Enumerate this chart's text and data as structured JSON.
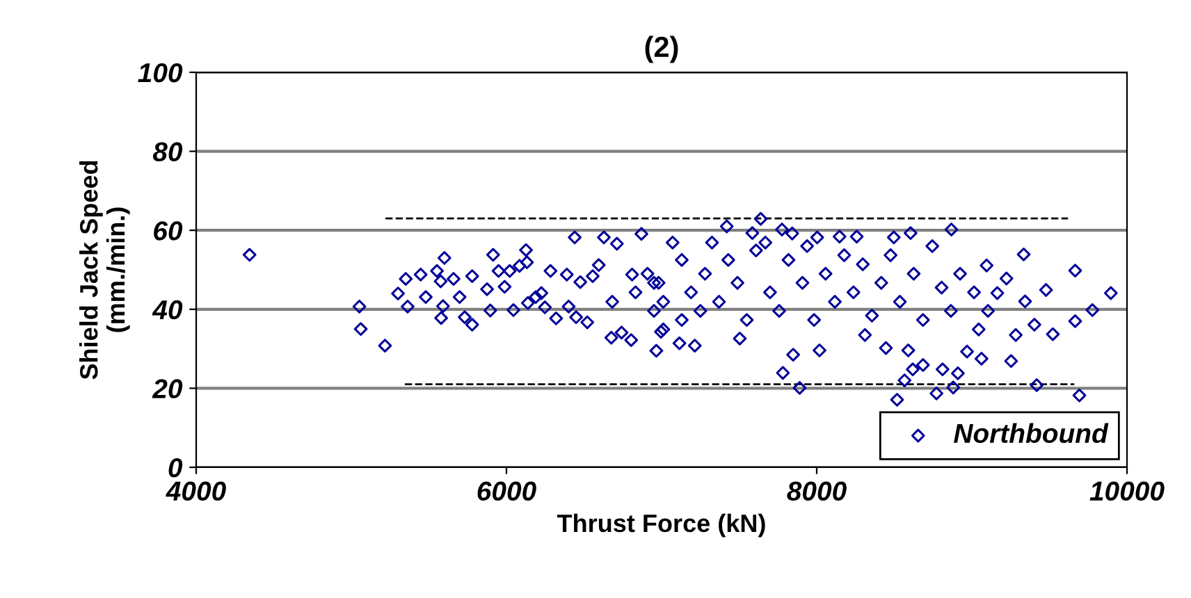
{
  "chart_data": {
    "type": "scatter",
    "title": "(2)",
    "xlabel": "Thrust Force (kN)",
    "ylabel": "Shield Jack Speed\n(mm./min.)",
    "xlim": [
      4000,
      10000
    ],
    "xticks": [
      4000,
      6000,
      8000,
      10000
    ],
    "ylim": [
      0,
      100
    ],
    "yticks": [
      0,
      20,
      40,
      60,
      80,
      100
    ],
    "grid": "y",
    "legend": "bottom right",
    "marker": "diamond",
    "series": [
      {
        "name": "Northbound",
        "color": "#000099",
        "x": [
          4344,
          5052,
          5061,
          5217,
          5301,
          5351,
          5363,
          5447,
          5480,
          5552,
          5600,
          5576,
          5579,
          5591,
          5659,
          5698,
          5731,
          5779,
          5779,
          5875,
          5896,
          5914,
          5949,
          5988,
          6021,
          6045,
          6084,
          6126,
          6132,
          6138,
          6189,
          6225,
          6248,
          6284,
          6320,
          6389,
          6401,
          6440,
          6449,
          6476,
          6521,
          6556,
          6595,
          6628,
          6676,
          6712,
          6742,
          6804,
          6810,
          6870,
          6909,
          6966,
          6996,
          6682,
          6832,
          6951,
          6981,
          7071,
          6951,
          7011,
          7115,
          7214,
          7250,
          7325,
          7420,
          7504,
          7585,
          7639,
          7669,
          7776,
          7842,
          7782,
          7848,
          7890,
          8018,
          8003,
          8147,
          8258,
          8311,
          8446,
          8497,
          8605,
          8590,
          8566,
          8619,
          8685,
          8772,
          8811,
          8868,
          8880,
          8910,
          8969,
          9062,
          9095,
          9164,
          9223,
          9334,
          9343,
          9283,
          9253,
          9403,
          9418,
          9478,
          9522,
          9666,
          9666,
          9693,
          9777,
          9896,
          8518,
          7130,
          7190,
          7280,
          7370,
          7430,
          7489,
          7549,
          7609,
          7699,
          7758,
          7818,
          7908,
          7938,
          7983,
          8057,
          8117,
          8177,
          8237,
          8297,
          8356,
          8416,
          8476,
          8536,
          8625,
          8685,
          8745,
          8805,
          8865,
          8924,
          9014,
          9044,
          9104,
          7011,
          7130
        ],
        "values": [
          53.8,
          40.7,
          35.0,
          30.8,
          44.0,
          47.7,
          40.7,
          48.8,
          43.1,
          49.7,
          53.0,
          47.1,
          37.8,
          40.8,
          47.7,
          43.1,
          38.0,
          36.1,
          48.4,
          45.1,
          39.7,
          53.8,
          49.7,
          45.7,
          49.7,
          39.8,
          51.0,
          55.0,
          51.9,
          41.6,
          43.1,
          44.1,
          40.5,
          49.7,
          37.7,
          48.8,
          40.7,
          58.2,
          38.0,
          46.9,
          36.7,
          48.4,
          51.2,
          58.2,
          32.8,
          56.6,
          34.1,
          32.2,
          48.8,
          59.1,
          49.0,
          29.5,
          34.3,
          41.9,
          44.3,
          39.6,
          46.7,
          56.9,
          46.7,
          34.9,
          31.4,
          30.8,
          39.6,
          56.9,
          61.0,
          32.6,
          59.3,
          62.9,
          56.9,
          60.2,
          59.2,
          23.9,
          28.5,
          20.1,
          29.6,
          58.2,
          58.4,
          58.4,
          33.5,
          30.2,
          58.2,
          59.3,
          29.6,
          22.0,
          24.8,
          25.9,
          18.7,
          24.8,
          60.2,
          20.2,
          23.8,
          29.3,
          27.5,
          51.1,
          44.1,
          47.8,
          53.9,
          42.0,
          33.5,
          26.9,
          36.1,
          20.8,
          44.9,
          33.7,
          49.8,
          37.0,
          18.2,
          39.8,
          44.1,
          17.1,
          52.5,
          44.3,
          49.0,
          41.9,
          52.5,
          46.7,
          37.3,
          54.9,
          44.3,
          39.6,
          52.5,
          46.7,
          56.0,
          37.3,
          49.0,
          41.9,
          53.7,
          44.3,
          51.4,
          38.4,
          46.7,
          53.7,
          41.9,
          49.0,
          37.3,
          56.0,
          45.5,
          39.6,
          49.0,
          44.3,
          34.9,
          39.6,
          41.9,
          37.3
        ]
      },
      {
        "type": "line",
        "color": "#000000",
        "line_style": "dashed",
        "marker": "none",
        "x": [
          5220,
          9620
        ],
        "values": [
          63,
          63
        ]
      },
      {
        "type": "line",
        "color": "#000000",
        "line_style": "dashed",
        "marker": "none",
        "x": [
          5345,
          9660
        ],
        "values": [
          21,
          21
        ]
      }
    ]
  }
}
